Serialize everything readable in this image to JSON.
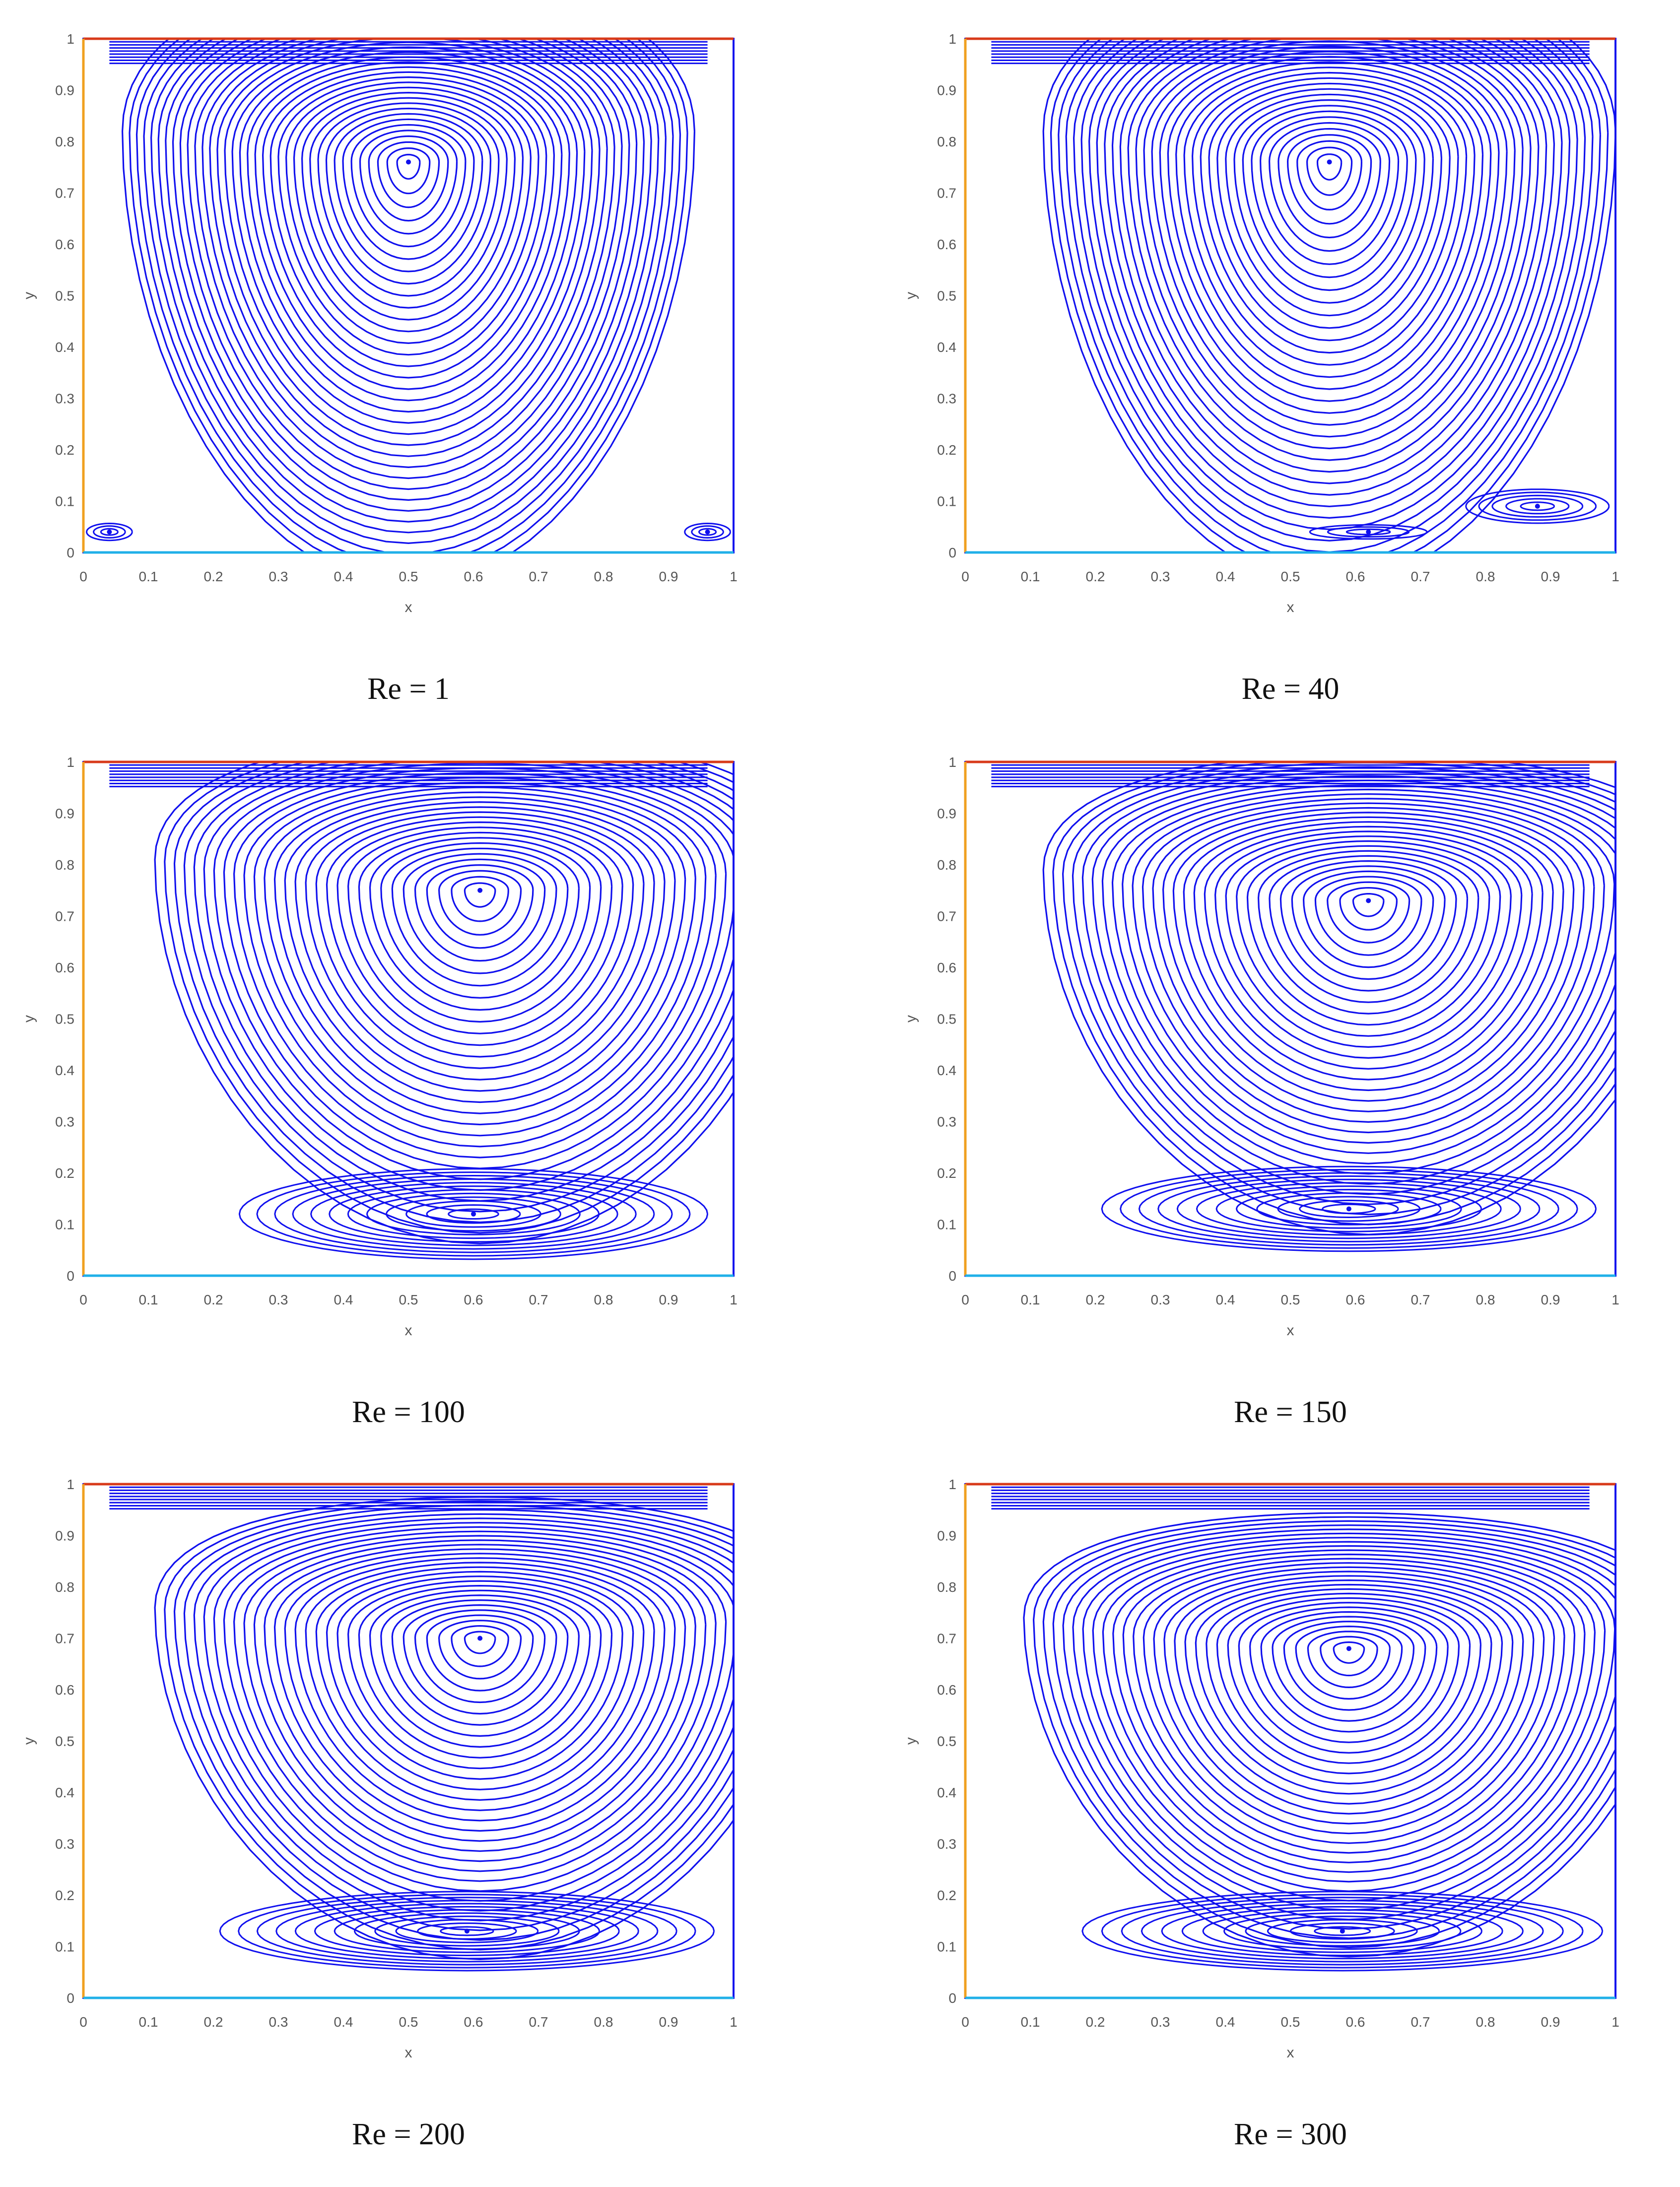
{
  "colors": {
    "streamline": "#1010ee",
    "left_wall": "#f0a020",
    "lid": "#d83a1a",
    "bottom_wall": "#20b0e8",
    "axis_text": "#555555"
  },
  "chart_data": [
    {
      "type": "streamline",
      "caption": "Re = 1",
      "xlabel": "x",
      "ylabel": "y",
      "xlim": [
        0,
        1
      ],
      "ylim": [
        0,
        1
      ],
      "xticks": [
        "0",
        "0.1",
        "0.2",
        "0.3",
        "0.4",
        "0.5",
        "0.6",
        "0.7",
        "0.8",
        "0.9",
        "1"
      ],
      "yticks": [
        "0",
        "0.1",
        "0.2",
        "0.3",
        "0.4",
        "0.5",
        "0.6",
        "0.7",
        "0.8",
        "0.9",
        "1"
      ],
      "grid": false,
      "vortices": [
        {
          "x": 0.5,
          "y": 0.76,
          "rx_max": 0.44,
          "ry_max": 0.66,
          "rings": 36,
          "kind": "primary"
        },
        {
          "x": 0.04,
          "y": 0.04,
          "rx_max": 0.035,
          "ry_max": 0.03,
          "rings": 3,
          "kind": "corner"
        },
        {
          "x": 0.96,
          "y": 0.04,
          "rx_max": 0.035,
          "ry_max": 0.03,
          "rings": 3,
          "kind": "corner"
        }
      ]
    },
    {
      "type": "streamline",
      "caption": "Re = 40",
      "xlabel": "x",
      "ylabel": "y",
      "xlim": [
        0,
        1
      ],
      "ylim": [
        0,
        1
      ],
      "xticks": [
        "0",
        "0.1",
        "0.2",
        "0.3",
        "0.4",
        "0.5",
        "0.6",
        "0.7",
        "0.8",
        "0.9",
        "1"
      ],
      "yticks": [
        "0",
        "0.1",
        "0.2",
        "0.3",
        "0.4",
        "0.5",
        "0.6",
        "0.7",
        "0.8",
        "0.9",
        "1"
      ],
      "grid": false,
      "vortices": [
        {
          "x": 0.56,
          "y": 0.76,
          "rx_max": 0.44,
          "ry_max": 0.66,
          "rings": 34,
          "kind": "primary"
        },
        {
          "x": 0.88,
          "y": 0.09,
          "rx_max": 0.11,
          "ry_max": 0.06,
          "rings": 5,
          "kind": "secondary"
        },
        {
          "x": 0.62,
          "y": 0.04,
          "rx_max": 0.09,
          "ry_max": 0.025,
          "rings": 3,
          "kind": "secondary"
        }
      ]
    },
    {
      "type": "streamline",
      "caption": "Re = 100",
      "xlabel": "x",
      "ylabel": "y",
      "xlim": [
        0,
        1
      ],
      "ylim": [
        0,
        1
      ],
      "xticks": [
        "0",
        "0.1",
        "0.2",
        "0.3",
        "0.4",
        "0.5",
        "0.6",
        "0.7",
        "0.8",
        "0.9",
        "1"
      ],
      "yticks": [
        "0",
        "0.1",
        "0.2",
        "0.3",
        "0.4",
        "0.5",
        "0.6",
        "0.7",
        "0.8",
        "0.9",
        "1"
      ],
      "grid": false,
      "vortices": [
        {
          "x": 0.61,
          "y": 0.75,
          "rx_max": 0.5,
          "ry_max": 0.55,
          "rings": 30,
          "kind": "primary"
        },
        {
          "x": 0.6,
          "y": 0.12,
          "rx_max": 0.36,
          "ry_max": 0.16,
          "rings": 12,
          "kind": "secondary"
        }
      ]
    },
    {
      "type": "streamline",
      "caption": "Re = 150",
      "xlabel": "x",
      "ylabel": "y",
      "xlim": [
        0,
        1
      ],
      "ylim": [
        0,
        1
      ],
      "xticks": [
        "0",
        "0.1",
        "0.2",
        "0.3",
        "0.4",
        "0.5",
        "0.6",
        "0.7",
        "0.8",
        "0.9",
        "1"
      ],
      "yticks": [
        "0",
        "0.1",
        "0.2",
        "0.3",
        "0.4",
        "0.5",
        "0.6",
        "0.7",
        "0.8",
        "0.9",
        "1"
      ],
      "grid": false,
      "vortices": [
        {
          "x": 0.62,
          "y": 0.73,
          "rx_max": 0.5,
          "ry_max": 0.52,
          "rings": 30,
          "kind": "primary"
        },
        {
          "x": 0.59,
          "y": 0.13,
          "rx_max": 0.38,
          "ry_max": 0.15,
          "rings": 12,
          "kind": "secondary"
        }
      ]
    },
    {
      "type": "streamline",
      "caption": "Re = 200",
      "xlabel": "x",
      "ylabel": "y",
      "xlim": [
        0,
        1
      ],
      "ylim": [
        0,
        1
      ],
      "xticks": [
        "0",
        "0.1",
        "0.2",
        "0.3",
        "0.4",
        "0.5",
        "0.6",
        "0.7",
        "0.8",
        "0.9",
        "1"
      ],
      "yticks": [
        "0",
        "0.1",
        "0.2",
        "0.3",
        "0.4",
        "0.5",
        "0.6",
        "0.7",
        "0.8",
        "0.9",
        "1"
      ],
      "grid": false,
      "vortices": [
        {
          "x": 0.61,
          "y": 0.7,
          "rx_max": 0.5,
          "ry_max": 0.5,
          "rings": 30,
          "kind": "primary"
        },
        {
          "x": 0.59,
          "y": 0.13,
          "rx_max": 0.38,
          "ry_max": 0.14,
          "rings": 12,
          "kind": "secondary"
        }
      ]
    },
    {
      "type": "streamline",
      "caption": "Re = 300",
      "xlabel": "x",
      "ylabel": "y",
      "xlim": [
        0,
        1
      ],
      "ylim": [
        0,
        1
      ],
      "xticks": [
        "0",
        "0.1",
        "0.2",
        "0.3",
        "0.4",
        "0.5",
        "0.6",
        "0.7",
        "0.8",
        "0.9",
        "1"
      ],
      "yticks": [
        "0",
        "0.1",
        "0.2",
        "0.3",
        "0.4",
        "0.5",
        "0.6",
        "0.7",
        "0.8",
        "0.9",
        "1"
      ],
      "grid": false,
      "vortices": [
        {
          "x": 0.59,
          "y": 0.68,
          "rx_max": 0.5,
          "ry_max": 0.48,
          "rings": 30,
          "kind": "primary"
        },
        {
          "x": 0.58,
          "y": 0.13,
          "rx_max": 0.4,
          "ry_max": 0.14,
          "rings": 12,
          "kind": "secondary"
        }
      ]
    }
  ]
}
